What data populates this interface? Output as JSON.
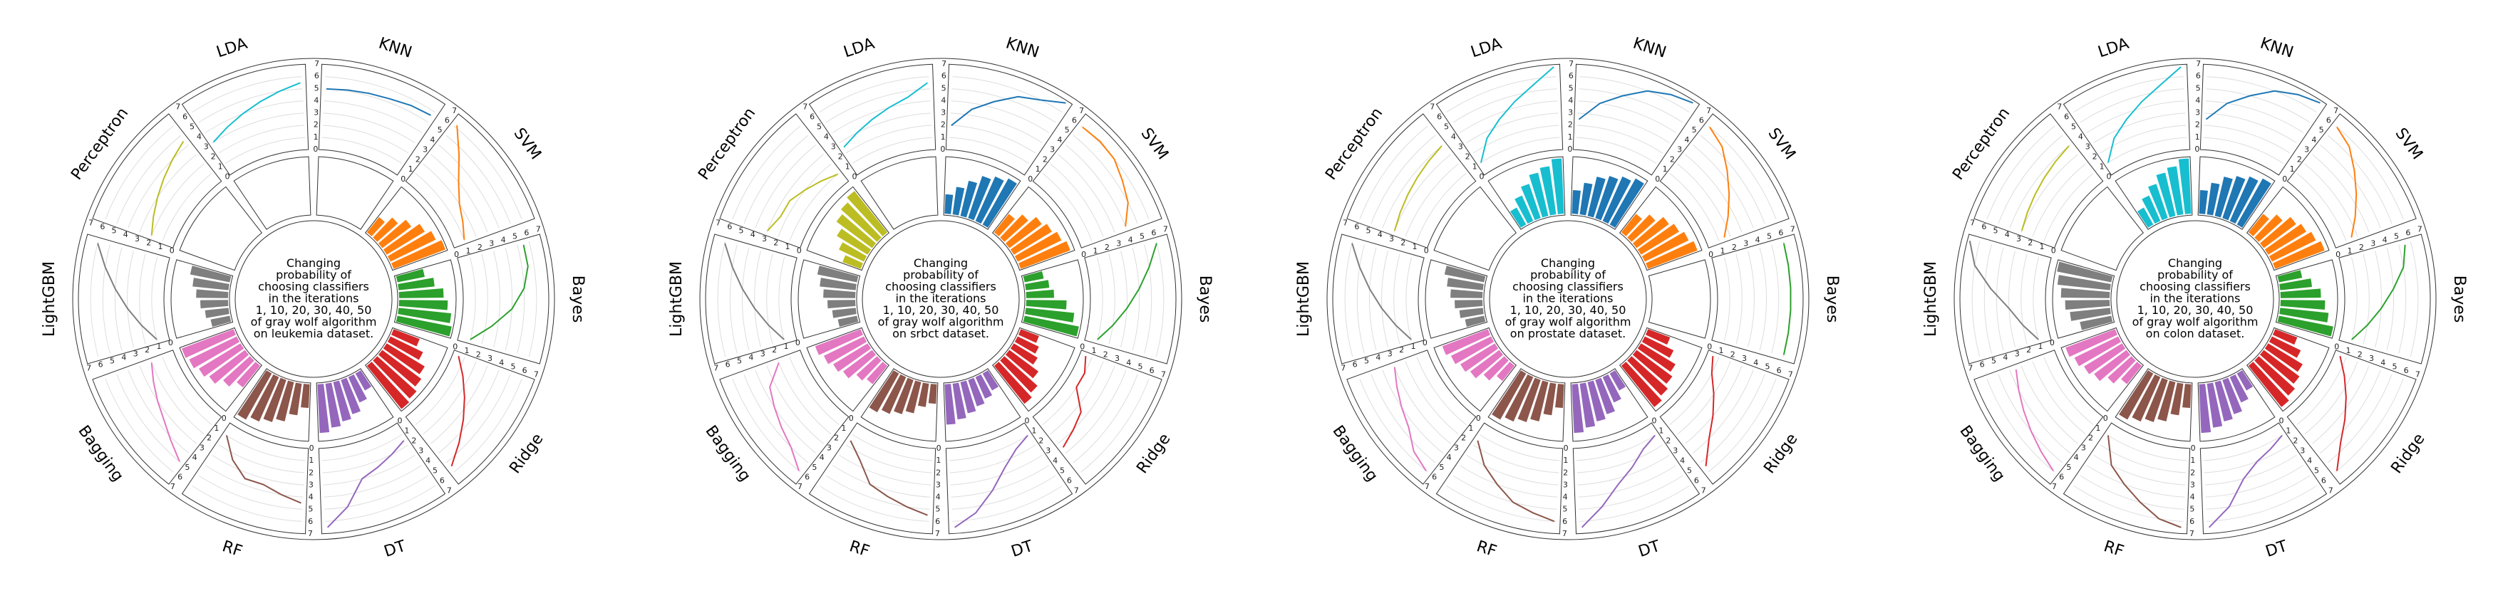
{
  "classifiers": [
    "KNN",
    "SVM",
    "Bayes",
    "Ridge",
    "DT",
    "RF",
    "Bagging",
    "LightGBM",
    "Perceptron",
    "LDA"
  ],
  "colors": [
    "#1f77b4",
    "#ff7f0e",
    "#2ca02c",
    "#d62728",
    "#9467bd",
    "#8c564b",
    "#e377c2",
    "#7f7f7f",
    "#bcbd22",
    "#17becf"
  ],
  "tick_labels": [
    "0",
    "1",
    "2",
    "3",
    "4",
    "5",
    "6",
    "7"
  ],
  "chart_data": [
    {
      "type": "bar",
      "dataset": "leukemia",
      "title_lines": [
        "Changing",
        "probability of",
        "choosing classifiers",
        "in the iterations",
        "1, 10, 20, 30, 40, 50",
        "of gray wolf algorithm",
        "on leukemia dataset."
      ],
      "iterations": [
        1,
        10,
        20,
        30,
        40,
        50
      ],
      "bars": {
        "KNN": [
          0,
          0,
          0,
          0,
          0,
          0
        ],
        "SVM": [
          2.5,
          3.5,
          4.5,
          5.5,
          6.2,
          6.8
        ],
        "Bayes": [
          3.5,
          4.5,
          5.5,
          6.0,
          6.5,
          6.8
        ],
        "Ridge": [
          3.5,
          4.5,
          5.5,
          6.0,
          6.5,
          6.8
        ],
        "DT": [
          2.5,
          3.5,
          4.5,
          5.0,
          5.5,
          6.0
        ],
        "RF": [
          3.0,
          4.0,
          5.0,
          5.5,
          6.0,
          6.5
        ],
        "Bagging": [
          3.5,
          4.5,
          5.5,
          6.0,
          6.5,
          6.8
        ],
        "LightGBM": [
          2.5,
          3.0,
          3.5,
          4.0,
          4.5,
          5.0
        ],
        "Perceptron": [
          0,
          0,
          0,
          0,
          0,
          0
        ],
        "LDA": [
          0,
          0,
          0,
          0,
          0,
          0
        ]
      },
      "lines": {
        "KNN": [
          5.0,
          5.1,
          5.2,
          5.3,
          5.5,
          5.6
        ],
        "SVM": [
          6.2,
          4.5,
          3.0,
          2.0,
          1.5,
          1.0
        ],
        "Bayes": [
          5.5,
          5.5,
          5.0,
          4.0,
          2.5,
          1.0
        ],
        "Ridge": [
          0.5,
          1.5,
          2.5,
          3.5,
          4.5,
          5.5
        ],
        "DT": [
          1.5,
          2.0,
          2.5,
          3.0,
          5.0,
          6.5
        ],
        "RF": [
          4.5,
          4.0,
          3.5,
          3.5,
          2.5,
          1.0
        ],
        "Bagging": [
          5.0,
          4.2,
          3.5,
          3.0,
          2.5,
          2.0
        ],
        "LightGBM": [
          1.0,
          2.0,
          3.0,
          4.0,
          5.0,
          6.0
        ],
        "Perceptron": [
          2.0,
          2.5,
          3.0,
          3.5,
          4.0,
          4.5
        ],
        "LDA": [
          3.0,
          3.5,
          4.0,
          4.5,
          5.0,
          5.5
        ]
      }
    },
    {
      "type": "bar",
      "dataset": "srbct",
      "title_lines": [
        "Changing",
        "probability of",
        "choosing classifiers",
        "in the iterations",
        "1, 10, 20, 30, 40, 50",
        "of gray wolf algorithm",
        "on srbct dataset."
      ],
      "iterations": [
        1,
        10,
        20,
        30,
        40,
        50
      ],
      "bars": {
        "KNN": [
          2.5,
          3.5,
          4.5,
          5.5,
          6.0,
          6.5
        ],
        "SVM": [
          3.0,
          4.0,
          5.0,
          5.5,
          6.0,
          6.5
        ],
        "Bayes": [
          2.5,
          3.0,
          3.5,
          5.0,
          6.0,
          6.8
        ],
        "Ridge": [
          2.5,
          3.0,
          3.5,
          4.5,
          5.5,
          6.0
        ],
        "DT": [
          2.5,
          3.0,
          3.5,
          4.0,
          4.5,
          5.0
        ],
        "RF": [
          2.5,
          3.0,
          4.0,
          4.5,
          5.0,
          5.5
        ],
        "Bagging": [
          3.0,
          3.5,
          4.5,
          5.0,
          5.5,
          6.0
        ],
        "LightGBM": [
          2.5,
          3.0,
          3.5,
          4.0,
          4.5,
          5.0
        ],
        "Perceptron": [
          2.5,
          3.5,
          4.5,
          5.5,
          6.0,
          6.5
        ],
        "LDA": [
          0,
          0,
          0,
          0,
          0,
          0
        ]
      },
      "lines": {
        "KNN": [
          2.0,
          3.5,
          4.5,
          5.5,
          6.0,
          6.8
        ],
        "SVM": [
          6.0,
          6.1,
          6.0,
          5.5,
          5.0,
          4.0
        ],
        "Bayes": [
          6.0,
          5.0,
          4.0,
          3.0,
          2.0,
          1.0
        ],
        "Ridge": [
          0.5,
          1.0,
          1.0,
          2.5,
          3.0,
          3.5
        ],
        "DT": [
          1.0,
          1.5,
          2.5,
          4.0,
          5.5,
          6.5
        ],
        "RF": [
          5.5,
          5.0,
          4.5,
          4.0,
          2.5,
          1.5
        ],
        "Bagging": [
          6.0,
          5.0,
          4.5,
          4.0,
          3.5,
          2.0
        ],
        "LightGBM": [
          1.0,
          2.0,
          3.0,
          4.0,
          5.0,
          6.0
        ],
        "Perceptron": [
          3.0,
          2.5,
          2.5,
          2.0,
          1.5,
          1.0
        ],
        "LDA": [
          2.5,
          3.0,
          3.5,
          4.0,
          4.5,
          5.5
        ]
      }
    },
    {
      "type": "bar",
      "dataset": "prostate",
      "title_lines": [
        "Changing",
        "probability of",
        "choosing classifiers",
        "in the iterations",
        "1, 10, 20, 30, 40, 50",
        "of gray wolf algorithm",
        "on prostate dataset."
      ],
      "iterations": [
        1,
        10,
        20,
        30,
        40,
        50
      ],
      "bars": {
        "KNN": [
          3.0,
          4.0,
          5.0,
          5.5,
          6.0,
          6.5
        ],
        "SVM": [
          3.0,
          4.0,
          5.0,
          5.5,
          6.0,
          6.5
        ],
        "Bayes": [
          0,
          0,
          0,
          0,
          0,
          0
        ],
        "Ridge": [
          3.0,
          4.0,
          5.0,
          5.5,
          6.0,
          6.5
        ],
        "DT": [
          2.5,
          3.5,
          4.5,
          5.0,
          5.5,
          6.0
        ],
        "RF": [
          3.0,
          4.0,
          5.0,
          5.5,
          6.0,
          6.5
        ],
        "Bagging": [
          2.5,
          3.5,
          4.5,
          5.0,
          5.5,
          6.0
        ],
        "LightGBM": [
          2.5,
          3.0,
          3.5,
          4.0,
          4.5,
          5.0
        ],
        "Perceptron": [
          0,
          0,
          0,
          0,
          0,
          0
        ],
        "LDA": [
          2.5,
          3.5,
          4.5,
          5.5,
          6.0,
          6.8
        ]
      },
      "lines": {
        "KNN": [
          2.5,
          4.0,
          5.0,
          6.0,
          6.5,
          6.8
        ],
        "SVM": [
          6.0,
          5.5,
          4.5,
          3.5,
          2.5,
          1.5
        ],
        "Bayes": [
          6.0,
          6.0,
          6.0,
          6.0,
          6.0,
          6.0
        ],
        "Ridge": [
          0.5,
          1.0,
          2.0,
          3.0,
          4.0,
          5.5
        ],
        "DT": [
          1.0,
          1.5,
          2.5,
          3.5,
          5.0,
          6.5
        ],
        "RF": [
          6.0,
          5.5,
          5.0,
          4.0,
          3.0,
          1.5
        ],
        "Bagging": [
          6.0,
          5.5,
          4.5,
          4.0,
          3.5,
          3.0
        ],
        "LightGBM": [
          1.0,
          2.0,
          3.0,
          4.0,
          5.0,
          6.0
        ],
        "Perceptron": [
          3.0,
          3.2,
          3.4,
          3.6,
          3.8,
          4.0
        ],
        "LDA": [
          1.0,
          2.5,
          3.5,
          4.5,
          5.5,
          6.8
        ]
      }
    },
    {
      "type": "bar",
      "dataset": "colon",
      "title_lines": [
        "Changing",
        "probability of",
        "choosing classifiers",
        "in the iterations",
        "1, 10, 20, 30, 40, 50",
        "of gray wolf algorithm",
        "on colon dataset."
      ],
      "iterations": [
        1,
        10,
        20,
        30,
        40,
        50
      ],
      "bars": {
        "KNN": [
          3.0,
          4.0,
          5.0,
          5.5,
          6.0,
          6.5
        ],
        "SVM": [
          3.0,
          4.0,
          5.0,
          5.5,
          6.0,
          6.5
        ],
        "Bayes": [
          3.0,
          4.0,
          5.0,
          5.5,
          6.0,
          6.8
        ],
        "Ridge": [
          3.0,
          4.0,
          5.0,
          5.5,
          6.0,
          6.5
        ],
        "DT": [
          2.5,
          3.5,
          4.5,
          5.0,
          5.5,
          6.0
        ],
        "RF": [
          3.0,
          4.0,
          5.0,
          5.5,
          6.0,
          6.5
        ],
        "Bagging": [
          3.0,
          4.0,
          5.0,
          5.5,
          6.0,
          6.5
        ],
        "LightGBM": [
          4.0,
          5.0,
          5.5,
          6.0,
          6.5,
          6.8
        ],
        "Perceptron": [
          0,
          0,
          0,
          0,
          0,
          0
        ],
        "LDA": [
          2.5,
          3.5,
          4.5,
          5.5,
          6.0,
          6.8
        ]
      },
      "lines": {
        "KNN": [
          2.5,
          4.0,
          5.0,
          6.0,
          6.5,
          6.8
        ],
        "SVM": [
          6.0,
          5.5,
          4.5,
          3.5,
          2.5,
          1.5
        ],
        "Bayes": [
          5.5,
          5.0,
          4.0,
          3.0,
          2.0,
          1.0
        ],
        "Ridge": [
          0.5,
          1.5,
          2.5,
          3.5,
          4.5,
          6.0
        ],
        "DT": [
          1.0,
          1.5,
          2.0,
          3.0,
          5.0,
          6.5
        ],
        "RF": [
          6.5,
          6.0,
          5.0,
          4.0,
          3.0,
          1.0
        ],
        "Bagging": [
          6.0,
          5.5,
          5.0,
          4.5,
          4.0,
          3.5
        ],
        "LightGBM": [
          1.0,
          2.0,
          3.0,
          4.5,
          6.0,
          6.8
        ],
        "Perceptron": [
          3.0,
          3.2,
          3.4,
          3.6,
          3.8,
          4.0
        ],
        "LDA": [
          1.0,
          2.5,
          3.5,
          4.5,
          5.5,
          6.8
        ]
      }
    }
  ]
}
